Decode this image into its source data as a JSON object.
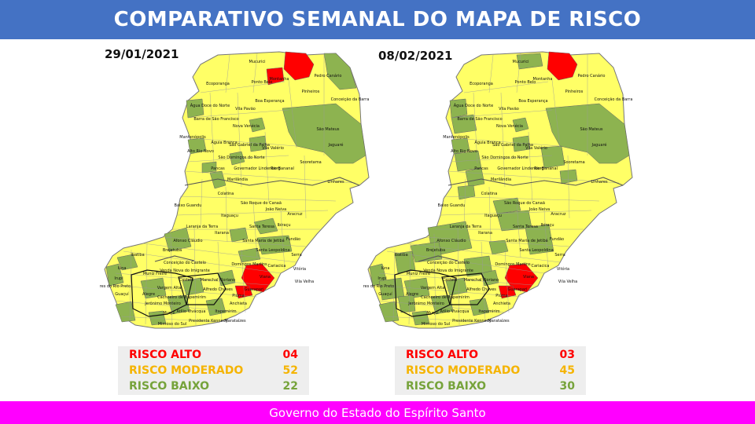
{
  "title": "COMPARATIVO SEMANAL DO MAPA DE RISCO",
  "footer": "Governo do Estado do Espírito Santo",
  "colors": {
    "banner": "#4472c4",
    "footer": "#ff00ff",
    "alto": "#ff0000",
    "moderado": "#ffff66",
    "baixo": "#8db350"
  },
  "maps": [
    {
      "date": "29/01/2021",
      "legend": {
        "alto": {
          "label": "RISCO ALTO",
          "value": "04"
        },
        "moderado": {
          "label": "RISCO MODERADO",
          "value": "52"
        },
        "baixo": {
          "label": "RISCO BAIXO",
          "value": "22"
        }
      },
      "places": [
        "Mucurici",
        "Montanha",
        "Pedro Canário",
        "Ecoporanga",
        "Ponto Belo",
        "Pinheiros",
        "Conceição da Barra",
        "Água Doce do Norte",
        "Barra de São Francisco",
        "Boa Esperança",
        "Vila Pavão",
        "São Mateus",
        "Nova Venécia",
        "Mantenópolis",
        "Águia Branca",
        "São Gabriel da Palha",
        "Jaguaré",
        "Alto Rio Novo",
        "Vila Valério",
        "Sooretama",
        "São Domingos do Norte",
        "Pancas",
        "Governador Lindenberg",
        "Rio Bananal",
        "Linhares",
        "Marilândia",
        "Colatina",
        "Baixo Guandu",
        "São Roque do Canaã",
        "João Neiva",
        "Itaguaçu",
        "Aracruz",
        "Laranja da Terra",
        "Santa Teresa",
        "Ibiraçu",
        "Itarana",
        "Afonso Cláudio",
        "Santa Maria de Jetibá",
        "Fundão",
        "Brejetuba",
        "Santa Leopoldina",
        "Serra",
        "Ibatiba",
        "Conceição do Castelo",
        "Venda Nova do Imigrante",
        "Domingos Martins",
        "Cariacica",
        "Vitória",
        "Iúna",
        "Irupi",
        "Muniz Freire",
        "Castelo",
        "Marechal Floriano",
        "Viana",
        "Vila Velha",
        "Alfredo Chaves",
        "Guarapari",
        "Dores do Rio Preto",
        "Guaçuí",
        "Alegre",
        "Cachoeiro de Itapemirim",
        "Vargem Alta",
        "Anchieta",
        "Jerônimo Monteiro",
        "Piúma",
        "Muqui",
        "Atílio Vivácqua",
        "Itapemirim",
        "Mimoso do Sul",
        "Presidente Kennedy",
        "Marataízes"
      ]
    },
    {
      "date": "08/02/2021",
      "legend": {
        "alto": {
          "label": "RISCO ALTO",
          "value": "03"
        },
        "moderado": {
          "label": "RISCO MODERADO",
          "value": "45"
        },
        "baixo": {
          "label": "RISCO BAIXO",
          "value": "30"
        }
      },
      "places": [
        "Mucurici",
        "Montanha",
        "Pedro Canário",
        "Ecoporanga",
        "Ponto Belo",
        "Pinheiros",
        "Conceição da Barra",
        "Água Doce do Norte",
        "Barra de São Francisco",
        "Boa Esperança",
        "Vila Pavão",
        "São Mateus",
        "Nova Venécia",
        "Mantenópolis",
        "Águia Branca",
        "São Gabriel da Palha",
        "Jaguaré",
        "Alto Rio Novo",
        "Vila Valério",
        "Sooretama",
        "São Domingos do Norte",
        "Pancas",
        "Governador Lindenberg",
        "Rio Bananal",
        "Linhares",
        "Marilândia",
        "Colatina",
        "Baixo Guandu",
        "São Roque do Canaã",
        "João Neiva",
        "Itaguaçu",
        "Aracruz",
        "Laranja da Terra",
        "Santa Teresa",
        "Ibiraçu",
        "Itarana",
        "Afonso Cláudio",
        "Santa Maria de Jetibá",
        "Fundão",
        "Brejetuba",
        "Santa Leopoldina",
        "Serra",
        "Ibatiba",
        "Conceição do Castelo",
        "Venda Nova do Imigrante",
        "Domingos Martins",
        "Cariacica",
        "Vitória",
        "Iúna",
        "Irupi",
        "Muniz Freire",
        "Castelo",
        "Marechal Floriano",
        "Viana",
        "Vila Velha",
        "Alfredo Chaves",
        "Guarapari",
        "Dores do Rio Preto",
        "Guaçuí",
        "Alegre",
        "Cachoeiro de Itapemirim",
        "Vargem Alta",
        "Anchieta",
        "Jerônimo Monteiro",
        "Piúma",
        "Muqui",
        "Atílio Vivácqua",
        "Itapemirim",
        "Mimoso do Sul",
        "Presidente Kennedy",
        "Marataízes"
      ]
    }
  ]
}
